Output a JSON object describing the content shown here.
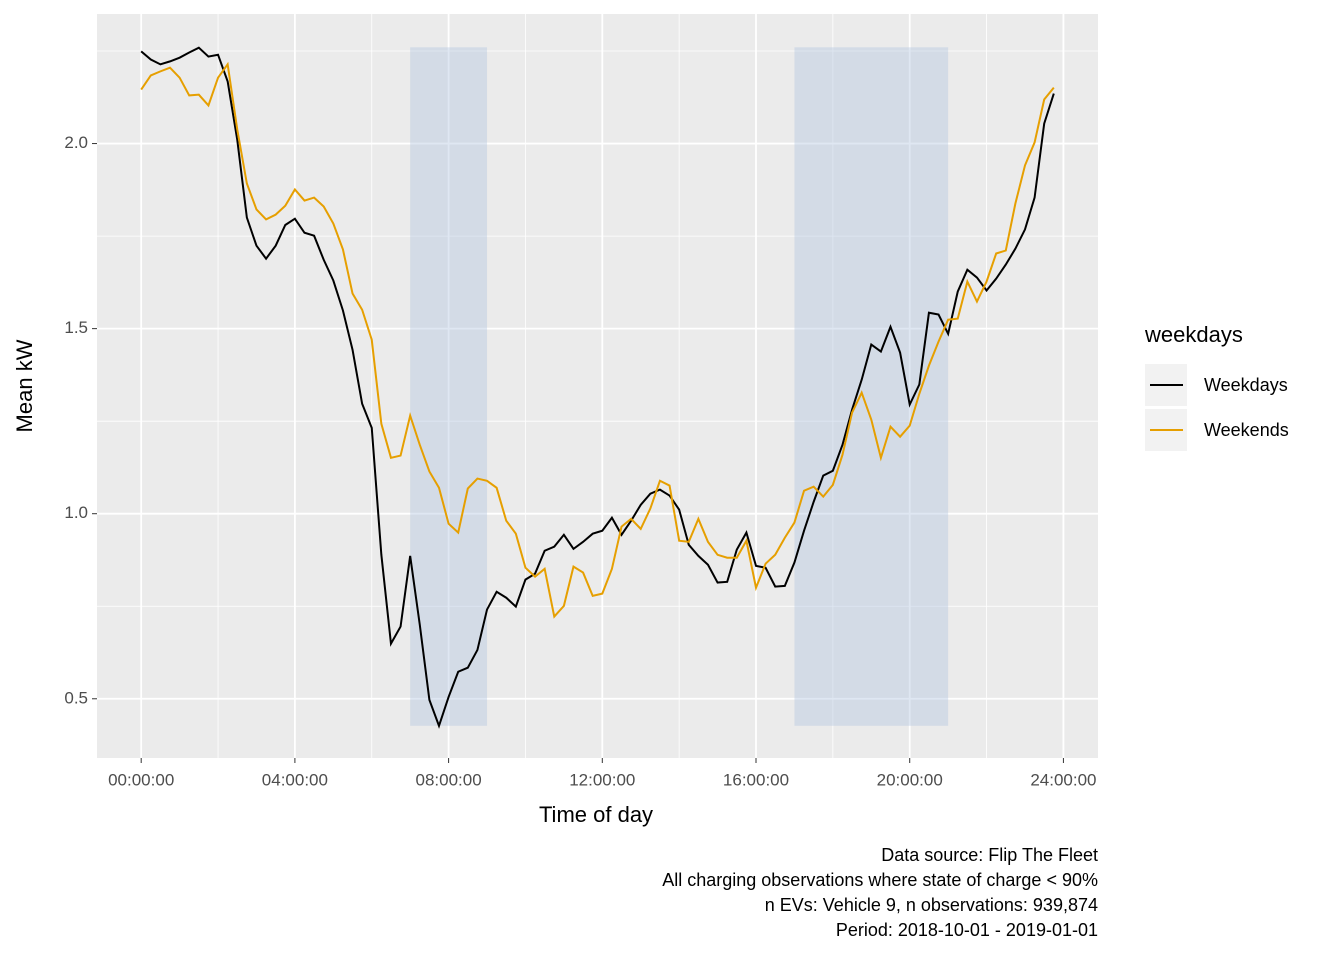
{
  "chart_data": {
    "type": "line",
    "x_label": "Time of day",
    "y_label": "Mean kW",
    "legend_title": "weekdays",
    "legend_position": "right",
    "caption": [
      "Data source: Flip The Fleet",
      "All charging observations where state of charge < 90%",
      "n EVs: Vehicle 9, n observations: 939,874",
      "Period: 2018-10-01 - 2019-01-01"
    ],
    "x": [
      0,
      0.25,
      0.5,
      0.75,
      1,
      1.25,
      1.5,
      1.75,
      2,
      2.25,
      2.5,
      2.75,
      3,
      3.25,
      3.5,
      3.75,
      4,
      4.25,
      4.5,
      4.75,
      5,
      5.25,
      5.5,
      5.75,
      6,
      6.25,
      6.5,
      6.75,
      7,
      7.25,
      7.5,
      7.75,
      8,
      8.25,
      8.5,
      8.75,
      9,
      9.25,
      9.5,
      9.75,
      10,
      10.25,
      10.5,
      10.75,
      11,
      11.25,
      11.5,
      11.75,
      12,
      12.25,
      12.5,
      12.75,
      13,
      13.25,
      13.5,
      13.75,
      14,
      14.25,
      14.5,
      14.75,
      15,
      15.25,
      15.5,
      15.75,
      16,
      16.25,
      16.5,
      16.75,
      17,
      17.25,
      17.5,
      17.75,
      18,
      18.25,
      18.5,
      18.75,
      19,
      19.25,
      19.5,
      19.75,
      20,
      20.25,
      20.5,
      20.75,
      21,
      21.25,
      21.5,
      21.75,
      22,
      22.25,
      22.5,
      22.75,
      23,
      23.25,
      23.5,
      23.75
    ],
    "series": [
      {
        "name": "Weekdays",
        "color": "#000000",
        "values": [
          2.249,
          2.227,
          2.214,
          2.222,
          2.232,
          2.246,
          2.259,
          2.235,
          2.24,
          2.168,
          2.01,
          1.8,
          1.724,
          1.689,
          1.724,
          1.78,
          1.797,
          1.759,
          1.751,
          1.686,
          1.63,
          1.549,
          1.443,
          1.297,
          1.232,
          0.889,
          0.649,
          0.695,
          0.886,
          0.7,
          0.497,
          0.427,
          0.505,
          0.573,
          0.584,
          0.632,
          0.741,
          0.789,
          0.773,
          0.749,
          0.822,
          0.838,
          0.9,
          0.911,
          0.943,
          0.905,
          0.924,
          0.946,
          0.954,
          0.989,
          0.943,
          0.981,
          1.024,
          1.054,
          1.065,
          1.049,
          1.011,
          0.916,
          0.886,
          0.862,
          0.814,
          0.816,
          0.903,
          0.949,
          0.859,
          0.854,
          0.803,
          0.805,
          0.868,
          0.954,
          1.032,
          1.103,
          1.116,
          1.186,
          1.281,
          1.362,
          1.457,
          1.438,
          1.505,
          1.435,
          1.295,
          1.349,
          1.543,
          1.538,
          1.486,
          1.6,
          1.659,
          1.638,
          1.603,
          1.635,
          1.673,
          1.716,
          1.768,
          1.854,
          2.054,
          2.135
        ]
      },
      {
        "name": "Weekends",
        "color": "#E69F00",
        "values": [
          2.146,
          2.184,
          2.195,
          2.205,
          2.178,
          2.13,
          2.132,
          2.103,
          2.178,
          2.214,
          2.038,
          1.892,
          1.822,
          1.795,
          1.808,
          1.832,
          1.876,
          1.846,
          1.854,
          1.83,
          1.784,
          1.714,
          1.595,
          1.551,
          1.47,
          1.243,
          1.151,
          1.157,
          1.265,
          1.186,
          1.114,
          1.07,
          0.973,
          0.949,
          1.068,
          1.095,
          1.089,
          1.07,
          0.981,
          0.946,
          0.854,
          0.83,
          0.851,
          0.722,
          0.751,
          0.857,
          0.841,
          0.778,
          0.784,
          0.851,
          0.965,
          0.986,
          0.959,
          1.014,
          1.089,
          1.076,
          0.927,
          0.924,
          0.986,
          0.924,
          0.889,
          0.881,
          0.881,
          0.927,
          0.8,
          0.865,
          0.889,
          0.935,
          0.976,
          1.062,
          1.073,
          1.046,
          1.078,
          1.159,
          1.273,
          1.327,
          1.254,
          1.151,
          1.235,
          1.208,
          1.238,
          1.324,
          1.4,
          1.465,
          1.524,
          1.527,
          1.627,
          1.573,
          1.627,
          1.703,
          1.711,
          1.838,
          1.941,
          2.003,
          2.119,
          2.151
        ]
      }
    ],
    "shaded_regions": [
      {
        "xmin": 7,
        "xmax": 9,
        "ymin": 0.427,
        "ymax": 2.26,
        "color": "#b0c4de"
      },
      {
        "xmin": 17,
        "xmax": 21,
        "ymin": 0.427,
        "ymax": 2.26,
        "color": "#b0c4de"
      }
    ],
    "xlim": [
      -1.15,
      24.9
    ],
    "ylim": [
      0.34,
      2.35
    ],
    "xticks": [
      {
        "value": 0,
        "label": "00:00:00"
      },
      {
        "value": 4,
        "label": "04:00:00"
      },
      {
        "value": 8,
        "label": "08:00:00"
      },
      {
        "value": 12,
        "label": "12:00:00"
      },
      {
        "value": 16,
        "label": "16:00:00"
      },
      {
        "value": 20,
        "label": "20:00:00"
      },
      {
        "value": 24,
        "label": "24:00:00"
      }
    ],
    "yticks": [
      {
        "value": 0.5,
        "label": "0.5"
      },
      {
        "value": 1,
        "label": "1.0"
      },
      {
        "value": 1.5,
        "label": "1.5"
      },
      {
        "value": 2,
        "label": "2.0"
      }
    ],
    "xminor": [
      2,
      6,
      10,
      14,
      18,
      22
    ],
    "yminor": [
      0.75,
      1.25,
      1.75,
      2.25
    ],
    "grid": true
  }
}
